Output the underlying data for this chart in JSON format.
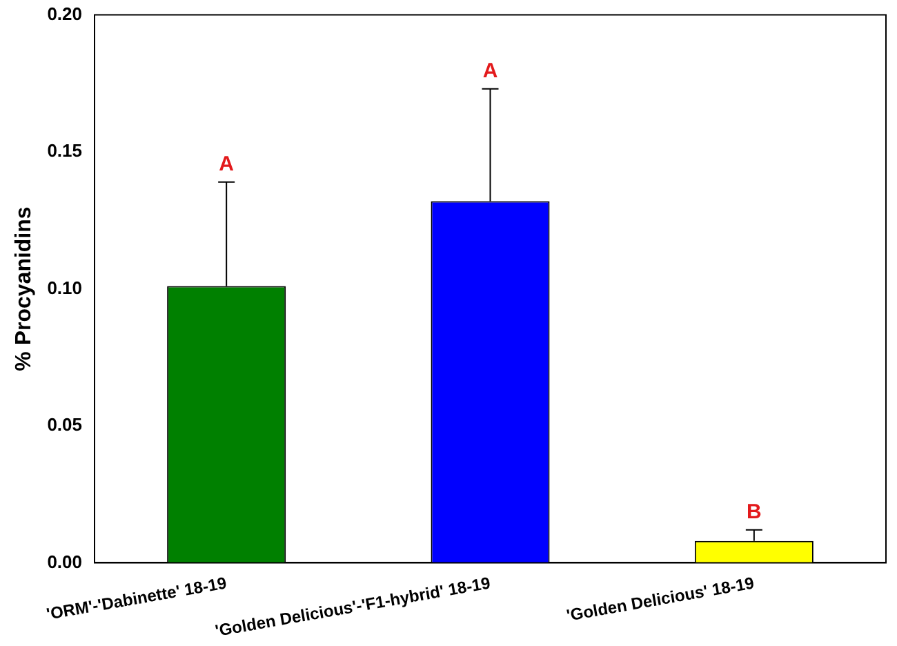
{
  "chart_data": {
    "type": "bar",
    "ylabel": "% Procyanidins",
    "categories": [
      "'ORM'-'Dabinette' 18-19",
      "'Golden Delicious'-'F1-hybrid' 18-19",
      "'Golden Delicious' 18-19"
    ],
    "values": [
      0.101,
      0.132,
      0.008
    ],
    "colors": [
      "#008000",
      "#0000ff",
      "#ffff00"
    ],
    "errors": [
      [
        0.101,
        0.139
      ],
      [
        0.132,
        0.173
      ],
      [
        0.008,
        0.012
      ]
    ],
    "ylim": [
      0,
      0.2
    ],
    "yticks": [
      {
        "value": 0,
        "label": "0.00"
      },
      {
        "value": 0.05,
        "label": "0.05"
      },
      {
        "value": 0.1,
        "label": "0.10"
      },
      {
        "value": 0.15,
        "label": "0.15"
      },
      {
        "value": 0.2,
        "label": "0.20"
      }
    ],
    "annotations": [
      "A",
      "A",
      "B"
    ],
    "grid": false,
    "legend": false
  }
}
